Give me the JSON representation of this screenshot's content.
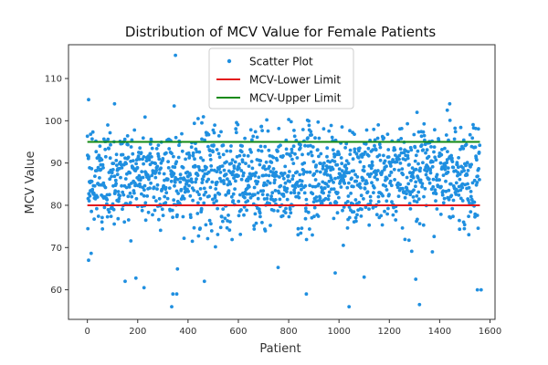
{
  "chart_data": {
    "type": "scatter",
    "title": "Distribution of MCV Value for Female Patients",
    "xlabel": "Patient",
    "ylabel": "MCV Value",
    "xlim": [
      -75,
      1620
    ],
    "ylim": [
      53,
      118
    ],
    "xticks": [
      0,
      200,
      400,
      600,
      800,
      1000,
      1200,
      1400,
      1600
    ],
    "yticks": [
      60,
      70,
      80,
      90,
      100,
      110
    ],
    "grid": false,
    "legend": {
      "placement": "top-center",
      "entries": [
        "Scatter Plot",
        "MCV-Lower Limit",
        "MCV-Upper Limit"
      ]
    },
    "series": [
      {
        "name": "Scatter Plot",
        "kind": "scatter",
        "color": "#1f8fe0",
        "count": 1560,
        "dense_range": [
          77,
          97
        ],
        "center": 87,
        "outliers": [
          {
            "x": 5,
            "y": 105
          },
          {
            "x": 108,
            "y": 104
          },
          {
            "x": 350,
            "y": 115.5
          },
          {
            "x": 345,
            "y": 103.5
          },
          {
            "x": 440,
            "y": 100.5
          },
          {
            "x": 455,
            "y": 99.5
          },
          {
            "x": 1310,
            "y": 102
          },
          {
            "x": 1440,
            "y": 104
          },
          {
            "x": 1430,
            "y": 102.5
          },
          {
            "x": 335,
            "y": 56
          },
          {
            "x": 1040,
            "y": 56
          },
          {
            "x": 1320,
            "y": 56.5
          },
          {
            "x": 340,
            "y": 59
          },
          {
            "x": 355,
            "y": 59
          },
          {
            "x": 870,
            "y": 59
          },
          {
            "x": 1550,
            "y": 60
          },
          {
            "x": 1565,
            "y": 60
          },
          {
            "x": 225,
            "y": 60.5
          },
          {
            "x": 150,
            "y": 62
          },
          {
            "x": 465,
            "y": 62
          },
          {
            "x": 1100,
            "y": 63
          },
          {
            "x": 1305,
            "y": 62.5
          },
          {
            "x": 5,
            "y": 67
          },
          {
            "x": 985,
            "y": 64
          }
        ]
      },
      {
        "name": "MCV-Lower Limit",
        "kind": "hline",
        "y": 80,
        "x": [
          0,
          1560
        ],
        "color": "#e31a1c"
      },
      {
        "name": "MCV-Upper Limit",
        "kind": "hline",
        "y": 95,
        "x": [
          0,
          1560
        ],
        "color": "#138a13"
      }
    ]
  }
}
